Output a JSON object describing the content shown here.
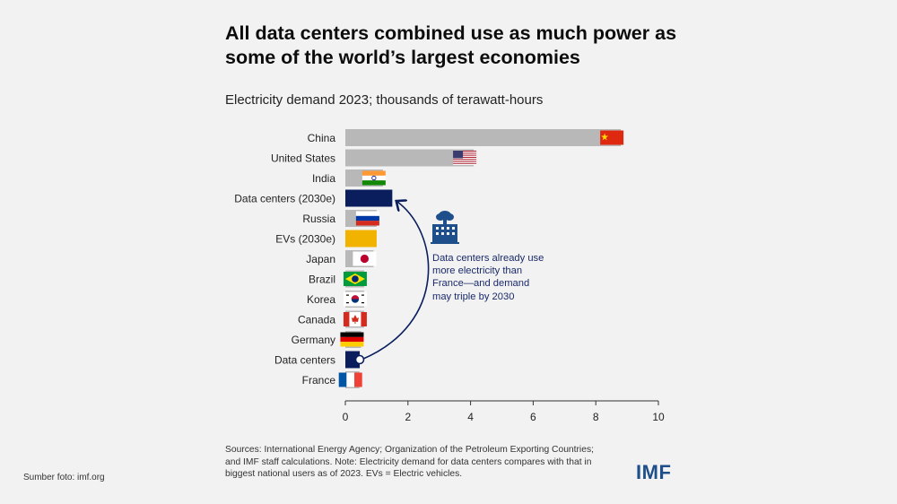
{
  "header": {
    "title": "All data centers combined use as much power as some of the world’s largest economies",
    "subtitle": "Electricity demand 2023; thousands of terawatt-hours"
  },
  "annotation": {
    "text": "Data centers already use more electricity than France—and demand may triple by 2030",
    "icon": "data-center-building-icon"
  },
  "footer": {
    "sources": "Sources: International Energy Agency; Organization of the Petroleum Exporting Countries; and IMF staff calculations. Note: Electricity demand for data centers compares with that in biggest national users as of 2023. EVs = Electric vehicles.",
    "photo_credit": "Sumber foto: imf.org",
    "logo_text": "IMF"
  },
  "colors": {
    "country_bar": "#b8b8b8",
    "data_center_bar": "#0a1e5e",
    "ev_bar": "#f2b200",
    "axis": "#333333",
    "annotation_text": "#1a2a6b"
  },
  "chart_data": {
    "type": "bar",
    "orientation": "horizontal",
    "categories": [
      "China",
      "United States",
      "India",
      "Data centers (2030e)",
      "Russia",
      "EVs (2030e)",
      "Japan",
      "Brazil",
      "Korea",
      "Canada",
      "Germany",
      "Data centers",
      "France"
    ],
    "values": [
      8.8,
      4.1,
      1.2,
      1.5,
      1.0,
      1.0,
      0.9,
      0.6,
      0.6,
      0.6,
      0.5,
      0.46,
      0.45
    ],
    "bar_kind": [
      "country",
      "country",
      "country",
      "data_center",
      "country",
      "ev",
      "country",
      "country",
      "country",
      "country",
      "country",
      "data_center",
      "country"
    ],
    "flags": [
      "china-flag",
      "usa-flag",
      "india-flag",
      "",
      "russia-flag",
      "",
      "japan-flag",
      "brazil-flag",
      "korea-flag",
      "canada-flag",
      "germany-flag",
      "",
      "france-flag"
    ],
    "xticks": [
      0,
      2,
      4,
      6,
      8,
      10
    ],
    "xlim": [
      0,
      10
    ],
    "title": "All data centers combined use as much power as some of the world’s largest economies",
    "subtitle": "Electricity demand 2023; thousands of terawatt-hours",
    "xlabel": "",
    "ylabel": "",
    "grid": false,
    "legend": "none"
  }
}
